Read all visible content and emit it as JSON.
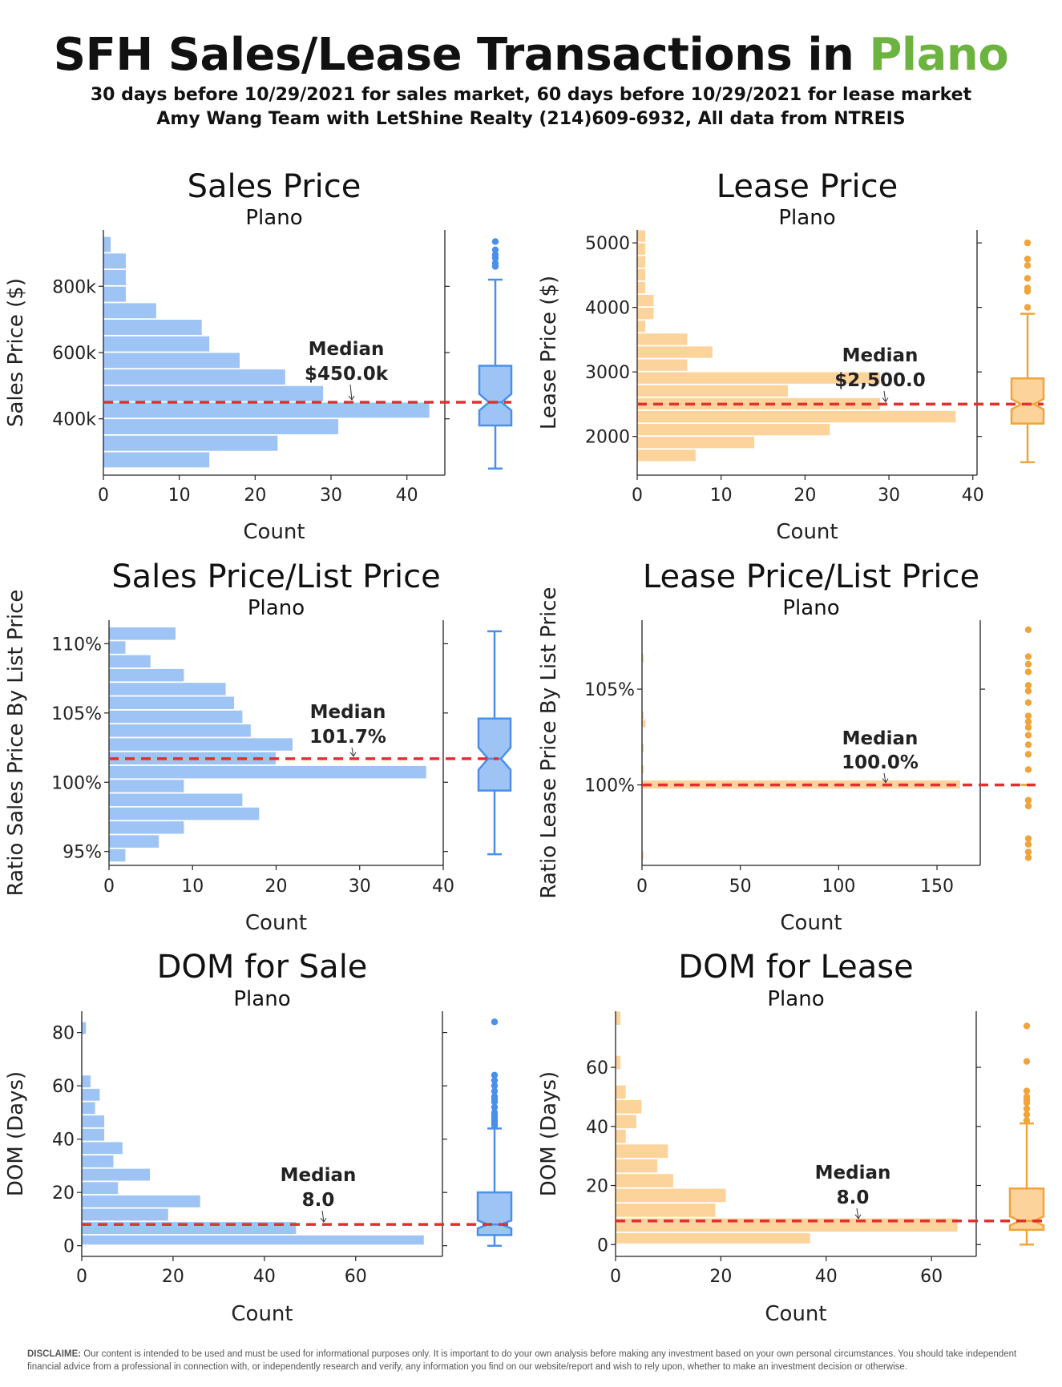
{
  "header": {
    "title_prefix": "SFH Sales/Lease Transactions in ",
    "title_city": "Plano",
    "subtitle_line1": "30 days before 10/29/2021 for sales market, 60 days before 10/29/2021 for lease market",
    "subtitle_line2": "Amy Wang Team with LetShine Realty (214)609-6932, All data from NTREIS",
    "city_color": "#6db33f"
  },
  "colors": {
    "sales_bar": "#9ec4f6",
    "sales_box": "#4a8fe8",
    "sales_box_fill": "#9ec4f6",
    "lease_bar": "#fdd39c",
    "lease_box": "#f0a43a",
    "lease_box_fill": "#fdd39c",
    "median_line": "#e03030"
  },
  "chart_data": [
    {
      "id": "sales-price",
      "type": "bar",
      "orientation": "horizontal",
      "title": "Sales Price",
      "subtitle": "Plano",
      "xlabel": "Count",
      "ylabel": "Sales Price ($)",
      "theme": "sales",
      "xlim": [
        0,
        45
      ],
      "xticks": [
        0,
        10,
        20,
        30,
        40
      ],
      "ylim": [
        230000,
        970000
      ],
      "yticks": [
        {
          "v": 400000,
          "label": "400k"
        },
        {
          "v": 600000,
          "label": "600k"
        },
        {
          "v": 800000,
          "label": "800k"
        }
      ],
      "bin_start": 250000,
      "bin_width": 50000,
      "counts": [
        14,
        23,
        31,
        43,
        29,
        24,
        18,
        14,
        13,
        7,
        3,
        3,
        3,
        1
      ],
      "median": 450000,
      "median_label": "Median",
      "median_value": "$450.0k",
      "box": {
        "whisker_low": 250000,
        "q1": 380000,
        "median": 450000,
        "q3": 560000,
        "whisker_high": 820000,
        "notch_low": 425000,
        "notch_high": 475000,
        "outliers": [
          860000,
          870000,
          885000,
          895000,
          910000,
          935000
        ]
      }
    },
    {
      "id": "lease-price",
      "type": "bar",
      "orientation": "horizontal",
      "title": "Lease Price",
      "subtitle": "Plano",
      "xlabel": "Count",
      "ylabel": "Lease Price ($)",
      "theme": "lease",
      "xlim": [
        0,
        40.5
      ],
      "xticks": [
        0,
        10,
        20,
        30,
        40
      ],
      "ylim": [
        1400,
        5200
      ],
      "yticks": [
        {
          "v": 2000,
          "label": "2000"
        },
        {
          "v": 3000,
          "label": "3000"
        },
        {
          "v": 4000,
          "label": "4000"
        },
        {
          "v": 5000,
          "label": "5000"
        }
      ],
      "bin_start": 1600,
      "bin_width": 200,
      "counts": [
        7,
        14,
        23,
        38,
        29,
        18,
        29,
        6,
        9,
        6,
        1,
        2,
        2,
        1,
        1,
        1,
        1,
        1
      ],
      "median": 2500,
      "median_label": "Median",
      "median_value": "$2,500.0",
      "box": {
        "whisker_low": 1600,
        "q1": 2200,
        "median": 2500,
        "q3": 2900,
        "whisker_high": 3900,
        "notch_low": 2420,
        "notch_high": 2580,
        "outliers": [
          4000,
          4250,
          4300,
          4450,
          4650,
          4750,
          5000
        ]
      }
    },
    {
      "id": "sales-ratio",
      "type": "bar",
      "orientation": "horizontal",
      "title": "Sales Price/List Price",
      "subtitle": "Plano",
      "xlabel": "Count",
      "ylabel": "Ratio Sales Price By List Price",
      "theme": "sales",
      "xlim": [
        0,
        40
      ],
      "xticks": [
        0,
        10,
        20,
        30,
        40
      ],
      "ylim": [
        94.0,
        111.7
      ],
      "yticks": [
        {
          "v": 95,
          "label": "95%"
        },
        {
          "v": 100,
          "label": "100%"
        },
        {
          "v": 105,
          "label": "105%"
        },
        {
          "v": 110,
          "label": "110%"
        }
      ],
      "bin_start": 94.2,
      "bin_width": 1,
      "counts": [
        2,
        6,
        9,
        18,
        16,
        9,
        38,
        20,
        22,
        17,
        16,
        15,
        14,
        9,
        5,
        2,
        8
      ],
      "median": 101.7,
      "median_label": "Median",
      "median_value": "101.7%",
      "box": {
        "whisker_low": 94.8,
        "q1": 99.4,
        "median": 101.7,
        "q3": 104.6,
        "whisker_high": 110.9,
        "notch_low": 100.9,
        "notch_high": 102.5,
        "outliers": []
      }
    },
    {
      "id": "lease-ratio",
      "type": "bar",
      "orientation": "horizontal",
      "title": "Lease Price/List Price",
      "subtitle": "Plano",
      "xlabel": "Count",
      "ylabel": "Ratio Lease Price By List Price",
      "theme": "lease",
      "xlim": [
        0,
        172
      ],
      "xticks": [
        0,
        50,
        100,
        150
      ],
      "ylim": [
        95.8,
        108.6
      ],
      "yticks": [
        {
          "v": 100,
          "label": "100%"
        },
        {
          "v": 105,
          "label": "105%"
        }
      ],
      "bins": [
        {
          "center": 96.3,
          "count": 1
        },
        {
          "center": 100.0,
          "count": 162
        },
        {
          "center": 100.8,
          "count": 1
        },
        {
          "center": 101.9,
          "count": 1
        },
        {
          "center": 103.2,
          "count": 2
        },
        {
          "center": 103.6,
          "count": 1
        },
        {
          "center": 106.6,
          "count": 1
        }
      ],
      "bin_width": 0.5,
      "median": 100.0,
      "median_label": "Median",
      "median_value": "100.0%",
      "box": {
        "whisker_low": 100.0,
        "q1": 100.0,
        "median": 100.0,
        "q3": 100.0,
        "whisker_high": 100.0,
        "notch_low": 100.0,
        "notch_high": 100.0,
        "outliers": [
          108.1,
          106.7,
          106.3,
          105.9,
          105.2,
          104.9,
          104.3,
          103.6,
          103.3,
          103.0,
          102.6,
          102.1,
          101.6,
          100.8,
          99.2,
          98.9,
          97.2,
          96.9,
          96.5,
          96.2
        ]
      }
    },
    {
      "id": "dom-sale",
      "type": "bar",
      "orientation": "horizontal",
      "title": "DOM for Sale",
      "subtitle": "Plano",
      "xlabel": "Count",
      "ylabel": "DOM (Days)",
      "theme": "sales",
      "xlim": [
        0,
        79
      ],
      "xticks": [
        0,
        20,
        40,
        60
      ],
      "ylim": [
        -4,
        88
      ],
      "yticks": [
        {
          "v": 0,
          "label": "0"
        },
        {
          "v": 20,
          "label": "20"
        },
        {
          "v": 40,
          "label": "40"
        },
        {
          "v": 60,
          "label": "60"
        },
        {
          "v": 80,
          "label": "80"
        }
      ],
      "bin_start": 0,
      "bin_width": 5,
      "bins": [
        {
          "lo": 0,
          "hi": 4,
          "count": 75
        },
        {
          "lo": 4,
          "hi": 9,
          "count": 47
        },
        {
          "lo": 9,
          "hi": 14,
          "count": 19
        },
        {
          "lo": 14,
          "hi": 19,
          "count": 26
        },
        {
          "lo": 19,
          "hi": 24,
          "count": 8
        },
        {
          "lo": 24,
          "hi": 29,
          "count": 15
        },
        {
          "lo": 29,
          "hi": 34,
          "count": 7
        },
        {
          "lo": 34,
          "hi": 39,
          "count": 9
        },
        {
          "lo": 39,
          "hi": 44,
          "count": 5
        },
        {
          "lo": 44,
          "hi": 49,
          "count": 5
        },
        {
          "lo": 49,
          "hi": 54,
          "count": 3
        },
        {
          "lo": 54,
          "hi": 59,
          "count": 4
        },
        {
          "lo": 59,
          "hi": 64,
          "count": 2
        },
        {
          "lo": 79,
          "hi": 84,
          "count": 1
        }
      ],
      "median": 8,
      "median_label": "Median",
      "median_value": "8.0",
      "box": {
        "whisker_low": 0,
        "q1": 4,
        "median": 8,
        "q3": 20,
        "whisker_high": 44,
        "notch_low": 6.5,
        "notch_high": 9.5,
        "outliers": [
          45,
          46,
          47,
          48,
          49,
          50,
          52,
          54,
          55,
          56,
          58,
          60,
          62,
          64,
          84
        ]
      }
    },
    {
      "id": "dom-lease",
      "type": "bar",
      "orientation": "horizontal",
      "title": "DOM for Lease",
      "subtitle": "Plano",
      "xlabel": "Count",
      "ylabel": "DOM (Days)",
      "theme": "lease",
      "xlim": [
        0,
        68.5
      ],
      "xticks": [
        0,
        20,
        40,
        60
      ],
      "ylim": [
        -4,
        79
      ],
      "yticks": [
        {
          "v": 0,
          "label": "0"
        },
        {
          "v": 20,
          "label": "20"
        },
        {
          "v": 40,
          "label": "40"
        },
        {
          "v": 60,
          "label": "60"
        }
      ],
      "bins": [
        {
          "lo": 0,
          "hi": 4,
          "count": 37
        },
        {
          "lo": 4,
          "hi": 9,
          "count": 65
        },
        {
          "lo": 9,
          "hi": 14,
          "count": 19
        },
        {
          "lo": 14,
          "hi": 19,
          "count": 21
        },
        {
          "lo": 19,
          "hi": 24,
          "count": 11
        },
        {
          "lo": 24,
          "hi": 29,
          "count": 8
        },
        {
          "lo": 29,
          "hi": 34,
          "count": 10
        },
        {
          "lo": 34,
          "hi": 39,
          "count": 2
        },
        {
          "lo": 39,
          "hi": 44,
          "count": 4
        },
        {
          "lo": 44,
          "hi": 49,
          "count": 5
        },
        {
          "lo": 49,
          "hi": 54,
          "count": 2
        },
        {
          "lo": 59,
          "hi": 64,
          "count": 1
        },
        {
          "lo": 74,
          "hi": 79,
          "count": 1
        }
      ],
      "median": 8,
      "median_label": "Median",
      "median_value": "8.0",
      "box": {
        "whisker_low": 0,
        "q1": 5,
        "median": 8,
        "q3": 19,
        "whisker_high": 41,
        "notch_low": 6.5,
        "notch_high": 9.5,
        "outliers": [
          42,
          44,
          46,
          48,
          49,
          50,
          52,
          62,
          74
        ]
      }
    }
  ],
  "footer": {
    "disclaimer_label": "DISCLAIME:",
    "disclaimer_text": " Our content is intended to be used and must be used for informational purposes only. It is important to do your own analysis before making any investment based on your own personal circumstances. You should take independent financial advice from a professional in connection with, or independently research and verify, any information you find on our website/report and wish to rely upon, whether to make an investment decision or otherwise."
  }
}
